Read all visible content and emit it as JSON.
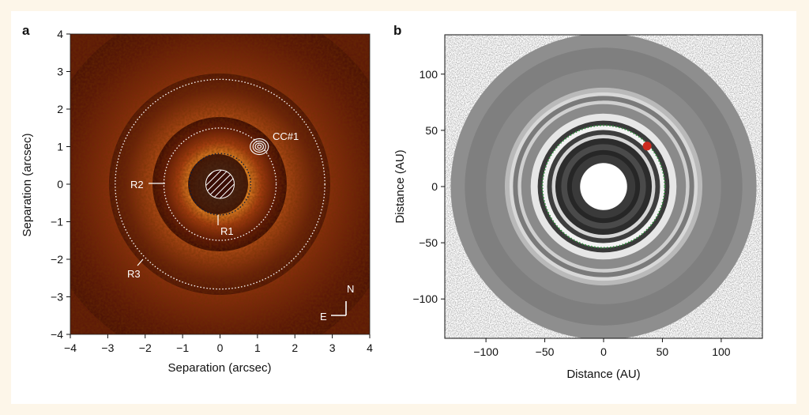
{
  "panels": {
    "a": {
      "label": "a",
      "chart_data": {
        "type": "heatmap",
        "description_text_only": "",
        "xlabel": "Separation (arcsec)",
        "ylabel": "Separation (arcsec)",
        "xlim": [
          -4,
          4
        ],
        "ylim": [
          -4,
          4
        ],
        "x_ticks": [
          "−4",
          "−3",
          "−2",
          "−1",
          "0",
          "1",
          "2",
          "3",
          "4"
        ],
        "y_ticks": [
          "4",
          "3",
          "2",
          "1",
          "0",
          "−1",
          "−2",
          "−3",
          "−4"
        ],
        "rings": [
          {
            "name": "R1",
            "radius_arcsec": 0.82
          },
          {
            "name": "R2",
            "radius_arcsec": 1.5
          },
          {
            "name": "R3",
            "radius_arcsec": 2.8
          }
        ],
        "companion": {
          "name": "CC#1",
          "x": 1.05,
          "y": 1.0
        },
        "compass": {
          "north": "N",
          "east": "E"
        }
      }
    },
    "b": {
      "label": "b",
      "chart_data": {
        "type": "scatter",
        "xlabel": "Distance (AU)",
        "ylabel": "Distance (AU)",
        "xlim": [
          -135,
          135
        ],
        "ylim": [
          -135,
          135
        ],
        "x_ticks": [
          "−100",
          "−50",
          "0",
          "50",
          "100"
        ],
        "y_ticks": [
          "100",
          "50",
          "0",
          "−50",
          "−100"
        ],
        "inner_hole_radius_au": 20,
        "outer_radius_au": 130,
        "planet_orbit_radius_au": 52,
        "planet": {
          "x": 37,
          "y": 36,
          "color": "#cc2a1e"
        },
        "orbit_color": "#2e8b3a"
      }
    }
  }
}
